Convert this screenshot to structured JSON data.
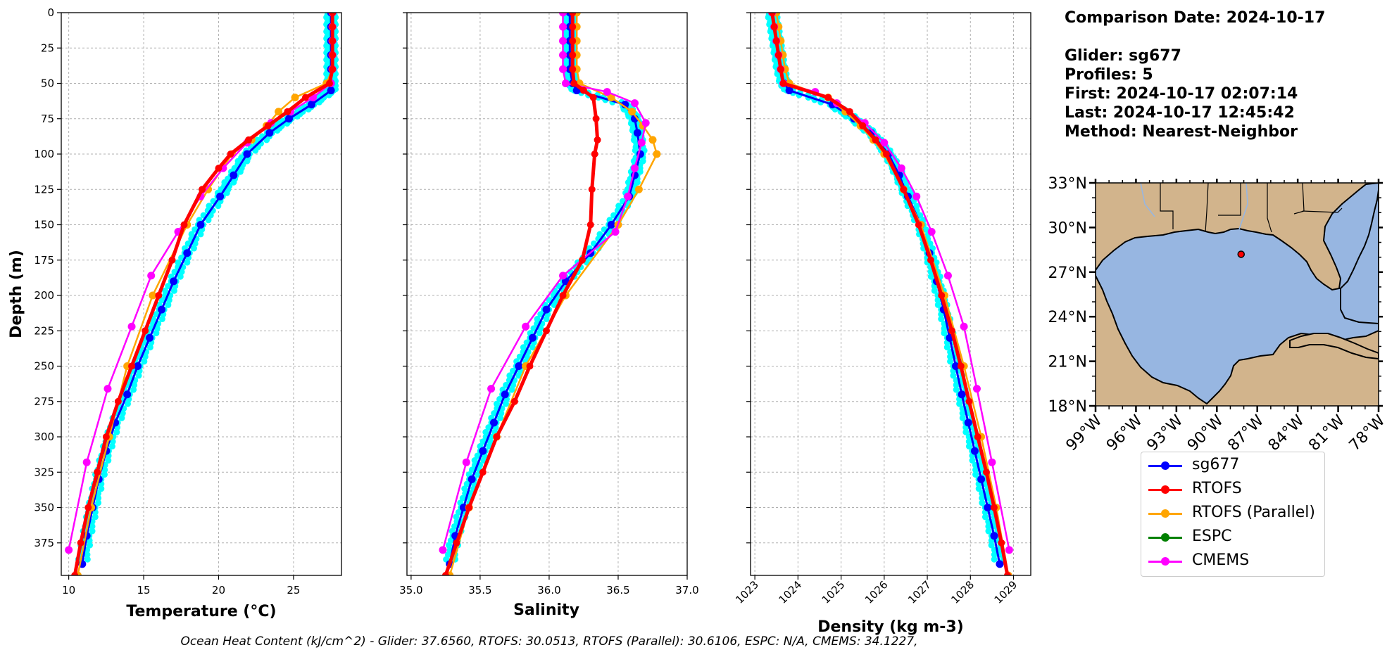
{
  "info": {
    "comparison": "Comparison Date: 2024-10-17",
    "glider": "Glider: sg677",
    "profiles": "Profiles: 5",
    "first": "First: 2024-10-17 02:07:14",
    "last": "Last: 2024-10-17 12:45:42",
    "method": "Method: Nearest-Neighbor"
  },
  "footer": "Ocean Heat Content (kJ/cm^2) - Glider: 37.6560,  RTOFS: 30.0513,  RTOFS (Parallel): 30.6106,  ESPC: N/A,  CMEMS: 34.1227,",
  "colors": {
    "sg677": "#0000ff",
    "rtofs": "#ff0000",
    "rtofs_parallel": "#ffa500",
    "espc": "#008000",
    "cmems": "#ff00ff",
    "glider_raw": "#00ffff",
    "land": "#d2b48c",
    "ocean": "#97b6e1"
  },
  "legend": [
    {
      "label": "sg677",
      "color": "#0000ff"
    },
    {
      "label": "RTOFS",
      "color": "#ff0000"
    },
    {
      "label": "RTOFS (Parallel)",
      "color": "#ffa500"
    },
    {
      "label": "ESPC",
      "color": "#008000"
    },
    {
      "label": "CMEMS",
      "color": "#ff00ff"
    }
  ],
  "chart_data": [
    {
      "type": "line",
      "xlabel": "Temperature (°C)",
      "ylabel": "Depth (m)",
      "xlim": [
        9.5,
        28.2
      ],
      "ylim": [
        398,
        0
      ],
      "xticks": [
        10,
        15,
        20,
        25
      ],
      "yticks": [
        0,
        25,
        50,
        75,
        100,
        125,
        150,
        175,
        200,
        225,
        250,
        275,
        300,
        325,
        350,
        375
      ],
      "grid": true,
      "series": [
        {
          "name": "sg677",
          "depth": [
            0,
            10,
            20,
            30,
            40,
            50,
            55,
            65,
            75,
            85,
            100,
            115,
            130,
            150,
            170,
            190,
            210,
            230,
            250,
            270,
            290,
            310,
            330,
            350,
            370,
            390
          ],
          "values": [
            27.5,
            27.5,
            27.5,
            27.5,
            27.5,
            27.5,
            27.5,
            26.2,
            24.7,
            23.4,
            21.9,
            21.0,
            20.1,
            18.8,
            17.9,
            17.0,
            16.2,
            15.4,
            14.6,
            13.9,
            13.1,
            12.5,
            12.0,
            11.6,
            11.2,
            10.9
          ]
        },
        {
          "name": "RTOFS",
          "depth": [
            0,
            10,
            20,
            30,
            40,
            50,
            60,
            70,
            80,
            90,
            100,
            110,
            125,
            150,
            175,
            200,
            225,
            250,
            275,
            300,
            325,
            350,
            375,
            398
          ],
          "values": [
            27.6,
            27.6,
            27.6,
            27.6,
            27.6,
            27.4,
            25.8,
            24.6,
            23.3,
            22.0,
            20.8,
            20.0,
            18.9,
            17.7,
            16.9,
            16.0,
            15.1,
            14.2,
            13.3,
            12.5,
            11.9,
            11.3,
            10.8,
            10.4
          ]
        },
        {
          "name": "RTOFS (Parallel)",
          "depth": [
            0,
            10,
            20,
            30,
            40,
            50,
            60,
            70,
            80,
            90,
            100,
            125,
            150,
            200,
            250,
            300,
            350,
            398
          ],
          "values": [
            27.6,
            27.6,
            27.6,
            27.6,
            27.6,
            27.2,
            25.1,
            24.0,
            23.2,
            22.2,
            20.9,
            19.3,
            17.9,
            15.6,
            13.9,
            12.7,
            11.5,
            10.6
          ]
        },
        {
          "name": "CMEMS",
          "depth": [
            0,
            10,
            20,
            30,
            40,
            50,
            60,
            70,
            78,
            92,
            110,
            130,
            155,
            186,
            222,
            266,
            318,
            380
          ],
          "values": [
            27.6,
            27.6,
            27.6,
            27.6,
            27.6,
            27.5,
            26.3,
            24.8,
            23.5,
            21.9,
            20.3,
            18.8,
            17.3,
            15.5,
            14.2,
            12.6,
            11.2,
            10.0
          ]
        }
      ]
    },
    {
      "type": "line",
      "xlabel": "Salinity",
      "xlim": [
        34.97,
        37.0
      ],
      "ylim": [
        398,
        0
      ],
      "xticks": [
        35.0,
        35.5,
        36.0,
        36.5,
        37.0
      ],
      "grid": true,
      "series": [
        {
          "name": "sg677",
          "depth": [
            0,
            10,
            20,
            30,
            40,
            50,
            55,
            65,
            75,
            85,
            100,
            115,
            130,
            150,
            170,
            190,
            210,
            230,
            250,
            270,
            290,
            310,
            330,
            350,
            370,
            390
          ],
          "values": [
            36.15,
            36.15,
            36.15,
            36.15,
            36.15,
            36.17,
            36.2,
            36.55,
            36.62,
            36.64,
            36.66,
            36.62,
            36.58,
            36.45,
            36.3,
            36.12,
            35.98,
            35.88,
            35.78,
            35.68,
            35.6,
            35.52,
            35.44,
            35.38,
            35.32,
            35.28
          ]
        },
        {
          "name": "RTOFS",
          "depth": [
            0,
            10,
            20,
            30,
            40,
            50,
            55,
            60,
            75,
            90,
            100,
            125,
            150,
            175,
            200,
            225,
            250,
            275,
            300,
            325,
            350,
            375,
            398
          ],
          "values": [
            36.17,
            36.17,
            36.17,
            36.17,
            36.17,
            36.18,
            36.25,
            36.32,
            36.34,
            36.35,
            36.33,
            36.31,
            36.3,
            36.24,
            36.1,
            35.98,
            35.86,
            35.75,
            35.62,
            35.52,
            35.42,
            35.33,
            35.25
          ]
        },
        {
          "name": "RTOFS (Parallel)",
          "depth": [
            0,
            10,
            20,
            30,
            40,
            50,
            60,
            70,
            80,
            90,
            100,
            125,
            150,
            200,
            250,
            300,
            350,
            398
          ],
          "values": [
            36.2,
            36.2,
            36.2,
            36.2,
            36.2,
            36.22,
            36.45,
            36.6,
            36.68,
            36.75,
            36.78,
            36.65,
            36.5,
            36.12,
            35.83,
            35.62,
            35.42,
            35.28
          ]
        },
        {
          "name": "CMEMS",
          "depth": [
            0,
            10,
            20,
            30,
            40,
            50,
            56,
            64,
            78,
            92,
            110,
            130,
            155,
            186,
            222,
            266,
            318,
            380
          ],
          "values": [
            36.1,
            36.1,
            36.1,
            36.1,
            36.1,
            36.12,
            36.42,
            36.62,
            36.7,
            36.67,
            36.62,
            36.57,
            36.48,
            36.1,
            35.83,
            35.58,
            35.4,
            35.23
          ]
        }
      ]
    },
    {
      "type": "line",
      "xlabel": "Density (kg m-3)",
      "xlim": [
        1022.9,
        1029.4
      ],
      "ylim": [
        398,
        0
      ],
      "xticks": [
        1023,
        1024,
        1025,
        1026,
        1027,
        1028,
        1029
      ],
      "grid": true,
      "series": [
        {
          "name": "sg677",
          "depth": [
            0,
            10,
            20,
            30,
            40,
            50,
            55,
            65,
            75,
            85,
            100,
            115,
            130,
            150,
            170,
            190,
            210,
            230,
            250,
            270,
            290,
            310,
            330,
            350,
            370,
            390
          ],
          "values": [
            1023.4,
            1023.45,
            1023.5,
            1023.55,
            1023.6,
            1023.68,
            1023.8,
            1024.8,
            1025.3,
            1025.7,
            1026.1,
            1026.35,
            1026.55,
            1026.85,
            1027.05,
            1027.22,
            1027.38,
            1027.52,
            1027.66,
            1027.8,
            1027.95,
            1028.1,
            1028.25,
            1028.4,
            1028.55,
            1028.68
          ]
        },
        {
          "name": "RTOFS",
          "depth": [
            0,
            10,
            20,
            30,
            40,
            50,
            60,
            70,
            80,
            90,
            100,
            125,
            150,
            175,
            200,
            225,
            250,
            275,
            300,
            325,
            350,
            375,
            398
          ],
          "values": [
            1023.4,
            1023.45,
            1023.5,
            1023.55,
            1023.6,
            1023.66,
            1024.7,
            1025.2,
            1025.5,
            1025.8,
            1026.05,
            1026.45,
            1026.8,
            1027.08,
            1027.33,
            1027.57,
            1027.78,
            1027.97,
            1028.17,
            1028.37,
            1028.55,
            1028.72,
            1028.86
          ]
        },
        {
          "name": "RTOFS (Parallel)",
          "depth": [
            0,
            10,
            20,
            30,
            40,
            50,
            60,
            70,
            80,
            90,
            100,
            125,
            150,
            200,
            250,
            300,
            350,
            398
          ],
          "values": [
            1023.5,
            1023.55,
            1023.6,
            1023.65,
            1023.7,
            1023.8,
            1024.7,
            1025.1,
            1025.45,
            1025.75,
            1026.0,
            1026.45,
            1026.85,
            1027.4,
            1027.85,
            1028.25,
            1028.6,
            1028.88
          ]
        },
        {
          "name": "CMEMS",
          "depth": [
            0,
            10,
            20,
            30,
            40,
            50,
            56,
            64,
            78,
            92,
            110,
            130,
            155,
            186,
            222,
            266,
            318,
            380
          ],
          "values": [
            1023.4,
            1023.45,
            1023.5,
            1023.55,
            1023.6,
            1023.66,
            1024.4,
            1024.9,
            1025.55,
            1026.0,
            1026.4,
            1026.75,
            1027.1,
            1027.48,
            1027.85,
            1028.15,
            1028.5,
            1028.9
          ]
        }
      ]
    },
    {
      "type": "map",
      "lon_ticks": [
        "99°W",
        "96°W",
        "93°W",
        "90°W",
        "87°W",
        "84°W",
        "81°W",
        "78°W"
      ],
      "lat_ticks": [
        "33°N",
        "30°N",
        "27°N",
        "24°N",
        "21°N",
        "18°N"
      ],
      "lon_range": [
        -99,
        -78
      ],
      "lat_range": [
        18,
        33
      ],
      "marker": {
        "lon": -88.2,
        "lat": 28.2
      }
    }
  ]
}
